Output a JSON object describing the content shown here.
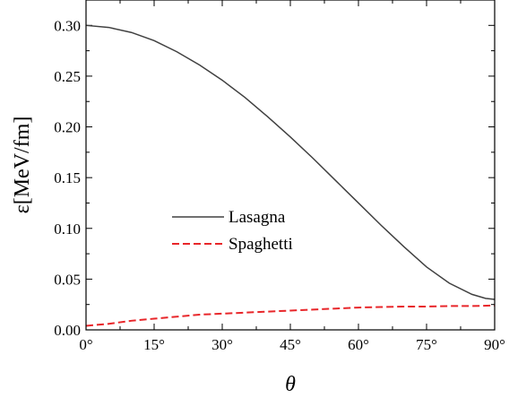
{
  "chart_data": {
    "type": "line",
    "xlabel": "θ",
    "ylabel": "ε[MeV/fm]",
    "xlim": [
      0,
      90
    ],
    "ylim": [
      0,
      0.325
    ],
    "x_ticks": [
      0,
      15,
      30,
      45,
      60,
      75,
      90
    ],
    "x_tick_labels": [
      "0°",
      "15°",
      "30°",
      "45°",
      "60°",
      "75°",
      "90°"
    ],
    "y_ticks": [
      0.0,
      0.05,
      0.1,
      0.15,
      0.2,
      0.25,
      0.3
    ],
    "y_tick_labels": [
      "0.00",
      "0.05",
      "0.10",
      "0.15",
      "0.20",
      "0.25",
      "0.30"
    ],
    "grid": false,
    "legend_position": "center-left",
    "series": [
      {
        "name": "Lasagna",
        "color": "#404040",
        "style": "solid",
        "x": [
          0,
          5,
          10,
          15,
          20,
          25,
          30,
          35,
          40,
          45,
          50,
          55,
          60,
          65,
          70,
          75,
          80,
          85,
          88,
          90
        ],
        "y": [
          0.3,
          0.298,
          0.293,
          0.285,
          0.274,
          0.261,
          0.246,
          0.229,
          0.21,
          0.19,
          0.169,
          0.147,
          0.125,
          0.103,
          0.082,
          0.062,
          0.046,
          0.035,
          0.031,
          0.03
        ]
      },
      {
        "name": "Spaghetti",
        "color": "#e8262a",
        "style": "dashed",
        "x": [
          0,
          5,
          10,
          15,
          20,
          25,
          30,
          35,
          40,
          45,
          50,
          55,
          60,
          65,
          70,
          75,
          80,
          85,
          90
        ],
        "y": [
          0.004,
          0.006,
          0.009,
          0.011,
          0.013,
          0.015,
          0.016,
          0.017,
          0.018,
          0.019,
          0.02,
          0.021,
          0.022,
          0.0225,
          0.023,
          0.023,
          0.0235,
          0.0235,
          0.024
        ]
      }
    ]
  }
}
